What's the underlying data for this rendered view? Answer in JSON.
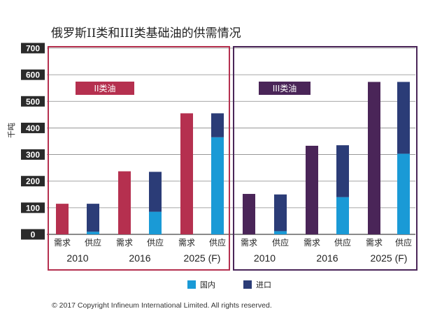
{
  "chart_data": {
    "type": "bar",
    "title": "俄罗斯II类和III类基础油的供需情况",
    "ylabel": "千吨",
    "ylim": [
      0,
      700
    ],
    "yticks": [
      0,
      100,
      200,
      300,
      400,
      500,
      600,
      700
    ],
    "grid": true,
    "legend_position": "bottom-center",
    "groups": [
      {
        "label": "II类油",
        "color": "#b5304f",
        "years": [
          {
            "year": "2010",
            "demand": 115,
            "supply_domestic": 10,
            "supply_import": 105
          },
          {
            "year": "2016",
            "demand": 237,
            "supply_domestic": 85,
            "supply_import": 150
          },
          {
            "year": "2025 (F)",
            "demand": 455,
            "supply_domestic": 365,
            "supply_import": 90
          }
        ]
      },
      {
        "label": "III类油",
        "color": "#4a2558",
        "years": [
          {
            "year": "2010",
            "demand": 152,
            "supply_domestic": 12,
            "supply_import": 138
          },
          {
            "year": "2016",
            "demand": 333,
            "supply_domestic": 140,
            "supply_import": 195
          },
          {
            "year": "2025 (F)",
            "demand": 573,
            "supply_domestic": 303,
            "supply_import": 270
          }
        ]
      }
    ],
    "bar_labels": {
      "demand": "需求",
      "supply": "供应"
    },
    "legend": [
      {
        "name": "国内",
        "color": "#1a9ad6"
      },
      {
        "name": "进口",
        "color": "#2b3c77"
      }
    ]
  },
  "copyright": "© 2017 Copyright Infineum International Limited. All rights reserved."
}
